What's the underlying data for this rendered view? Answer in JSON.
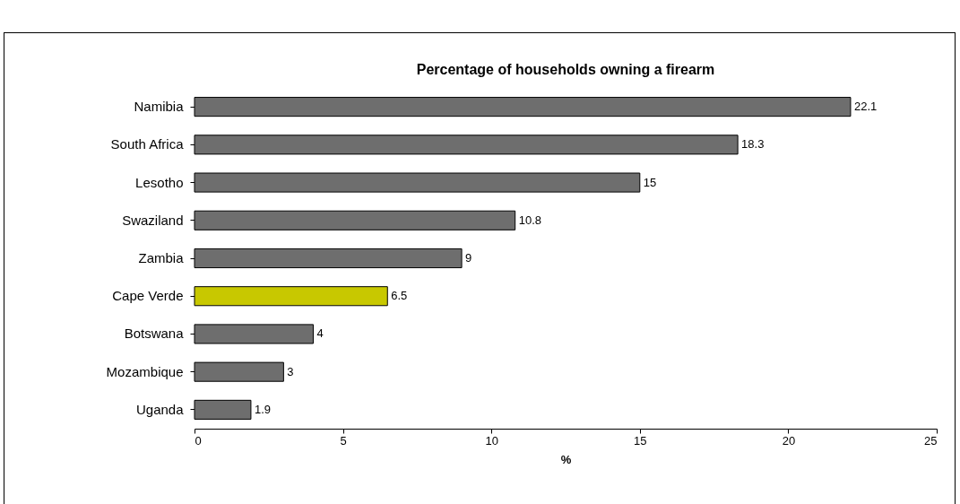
{
  "chart_data": {
    "type": "bar",
    "orientation": "horizontal",
    "title": "Percentage of households owning a firearm",
    "xlabel": "%",
    "categories": [
      "Namibia",
      "South Africa",
      "Lesotho",
      "Swaziland",
      "Zambia",
      "Cape Verde",
      "Botswana",
      "Mozambique",
      "Uganda"
    ],
    "values": [
      22.1,
      18.3,
      15,
      10.8,
      9,
      6.5,
      4,
      3,
      1.9
    ],
    "colors": [
      "#6e6e6e",
      "#6e6e6e",
      "#6e6e6e",
      "#6e6e6e",
      "#6e6e6e",
      "#c8c800",
      "#6e6e6e",
      "#6e6e6e",
      "#6e6e6e"
    ],
    "xlim": [
      0,
      25
    ],
    "xticks": [
      0,
      5,
      10,
      15,
      20,
      25
    ],
    "data_labels": true
  }
}
